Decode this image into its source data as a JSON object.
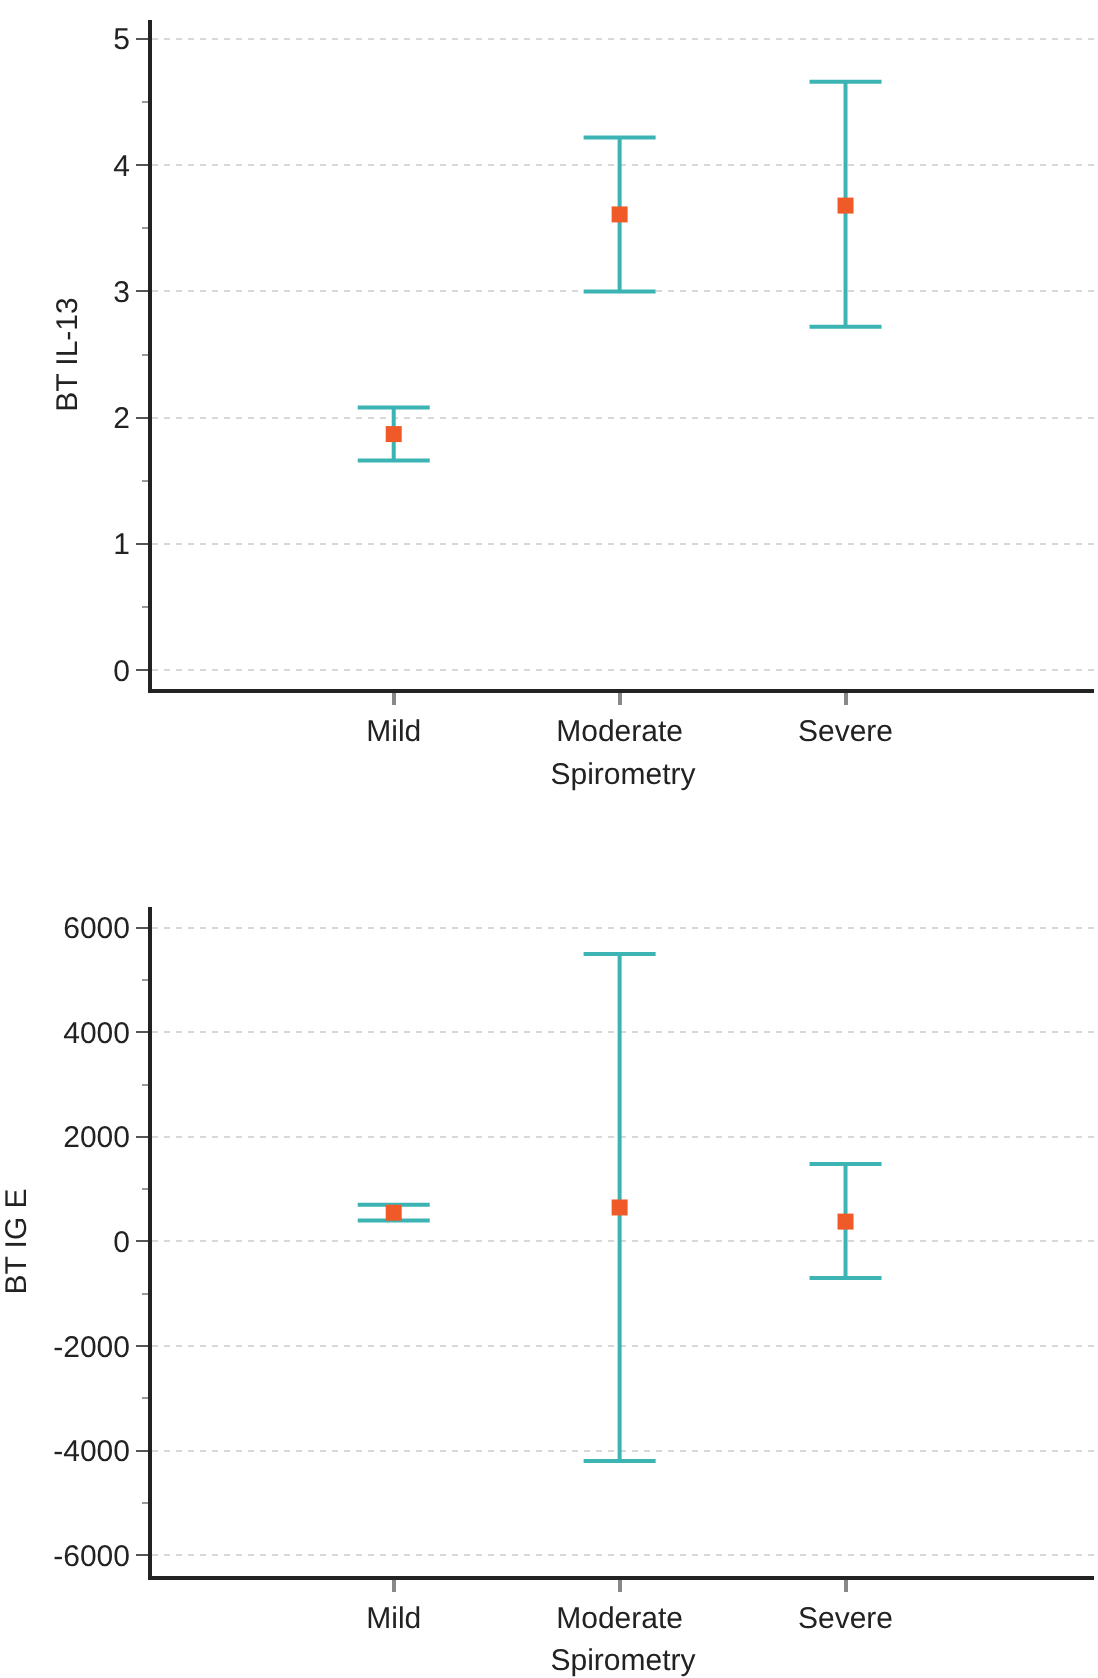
{
  "chart_data": [
    {
      "type": "scatter",
      "ylabel": "BT IL-13",
      "xlabel": "Spirometry",
      "categories": [
        "Mild",
        "Moderate",
        "Severe"
      ],
      "ylim": [
        -0.15,
        5.15
      ],
      "yticks": [
        0,
        {
          "value": 0.5,
          "label": null
        },
        1,
        {
          "value": 1.5,
          "label": null
        },
        2,
        {
          "value": 2.5,
          "label": null
        },
        3,
        {
          "value": 3.5,
          "label": null
        },
        4,
        {
          "value": 4.5,
          "label": null
        },
        5
      ],
      "grid": "y",
      "marker": "square",
      "series": [
        {
          "color": "#f05a28",
          "values": [
            1.87,
            3.61,
            3.68
          ],
          "errors": [
            [
              1.66,
              2.08
            ],
            [
              3.0,
              4.22
            ],
            [
              2.72,
              4.66
            ]
          ]
        }
      ]
    },
    {
      "type": "scatter",
      "ylabel": "BT IG E",
      "xlabel": "Spirometry",
      "categories": [
        "Mild",
        "Moderate",
        "Severe"
      ],
      "ylim": [
        -6400,
        6400
      ],
      "yticks": [
        -6000,
        {
          "value": -5000,
          "label": null
        },
        -4000,
        {
          "value": -3000,
          "label": null
        },
        -2000,
        {
          "value": -1000,
          "label": null
        },
        0,
        {
          "value": 1000,
          "label": null
        },
        2000,
        {
          "value": 3000,
          "label": null
        },
        4000,
        {
          "value": 5000,
          "label": null
        },
        6000
      ],
      "grid": "y",
      "marker": "square",
      "series": [
        {
          "color": "#f05a28",
          "values": [
            550,
            650,
            380
          ],
          "errors": [
            [
              400,
              700
            ],
            [
              -4200,
              5500
            ],
            [
              -700,
              1480
            ]
          ]
        }
      ]
    }
  ]
}
